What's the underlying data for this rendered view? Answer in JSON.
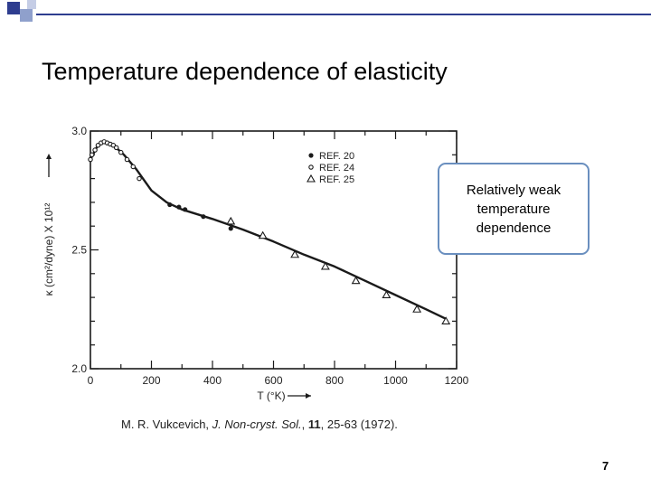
{
  "slide": {
    "title": "Temperature dependence of elasticity",
    "citation": {
      "authors": "M. R. Vukcevich, ",
      "journal": "J. Non-cryst. Sol.",
      "sep1": ", ",
      "volume": "11",
      "pages": ", 25-63 (1972)."
    },
    "callout": "Relatively weak temperature dependence",
    "page_number": "7",
    "colors": {
      "accent_blue": "#2e3d8f",
      "callout_border": "#6a8fbf"
    }
  },
  "chart_data": {
    "type": "scatter",
    "xlabel": "T (°K)",
    "ylabel": "κ (cm²/dyne) X 10¹²",
    "xlim": [
      0,
      1200
    ],
    "ylim": [
      2.0,
      3.0
    ],
    "xticks": [
      0,
      200,
      400,
      600,
      800,
      1000,
      1200
    ],
    "yticks": [
      2.0,
      2.5,
      3.0
    ],
    "ytick_labels": [
      "2.0",
      "2.5",
      "3.0"
    ],
    "legend_position": "top-right",
    "series": [
      {
        "name": "REF. 20",
        "marker": "filled-circle",
        "x": [
          260,
          290,
          310,
          370,
          460
        ],
        "y": [
          2.69,
          2.68,
          2.67,
          2.64,
          2.59
        ]
      },
      {
        "name": "REF. 24",
        "marker": "open-circle",
        "x": [
          0,
          5,
          15,
          25,
          35,
          45,
          55,
          65,
          75,
          85,
          100,
          120,
          140,
          160
        ],
        "y": [
          2.88,
          2.9,
          2.92,
          2.94,
          2.95,
          2.955,
          2.95,
          2.945,
          2.94,
          2.93,
          2.91,
          2.88,
          2.85,
          2.8
        ]
      },
      {
        "name": "REF. 25",
        "marker": "open-triangle",
        "x": [
          460,
          565,
          670,
          770,
          870,
          970,
          1070,
          1165
        ],
        "y": [
          2.62,
          2.56,
          2.48,
          2.43,
          2.37,
          2.31,
          2.25,
          2.2
        ]
      }
    ],
    "curve": {
      "x": [
        0,
        20,
        40,
        60,
        80,
        110,
        150,
        200,
        250,
        300,
        400,
        500,
        600,
        700,
        800,
        900,
        1000,
        1100,
        1165
      ],
      "y": [
        2.88,
        2.93,
        2.955,
        2.95,
        2.935,
        2.9,
        2.84,
        2.75,
        2.7,
        2.67,
        2.63,
        2.585,
        2.535,
        2.48,
        2.43,
        2.37,
        2.31,
        2.25,
        2.21
      ]
    }
  }
}
